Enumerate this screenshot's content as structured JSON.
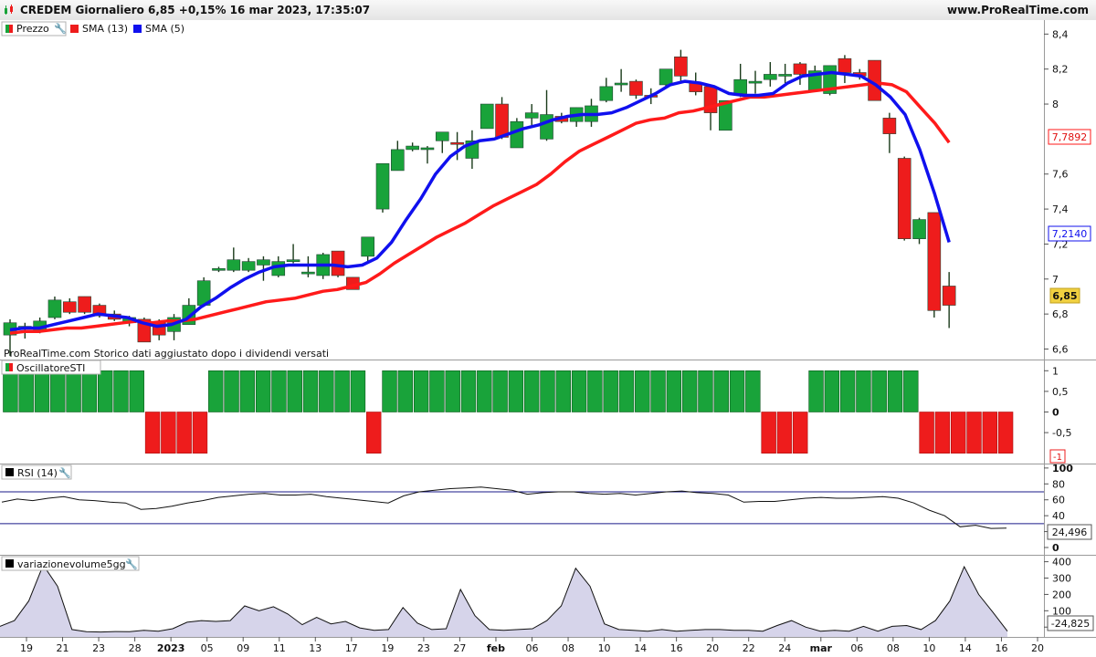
{
  "header": {
    "title": "CREDEM Giornaliero 6,85 +0,15% 16 mar 2023, 17:35:07",
    "site": "www.ProRealTime.com"
  },
  "note": "ProRealTime.com Storico dati aggiustato dopo i dividendi versati",
  "legend": {
    "price": "Prezzo",
    "sma13": "SMA (13)",
    "sma5": "SMA (5)",
    "sti": "OscillatoreSTI",
    "rsi": "RSI (14)",
    "vol": "variazionevolume5gg"
  },
  "colors": {
    "up": "#19a33a",
    "down": "#ee1c1c",
    "sma13": "#ff1a1a",
    "sma5": "#1010ee",
    "rsi_level": "#1a1a8a",
    "vol_fill": "#d6d4ea"
  },
  "badges": {
    "sma13": "7,7892",
    "sma5": "7,2140",
    "price": "6,85",
    "sti": "-1",
    "rsi": "24,496",
    "vol": "-24,825"
  },
  "chart_data": [
    {
      "type": "candlestick",
      "title": "CREDEM Giornaliero",
      "x_labels": [
        "19",
        "21",
        "23",
        "28",
        "2023",
        "05",
        "09",
        "11",
        "13",
        "17",
        "19",
        "23",
        "27",
        "feb",
        "06",
        "08",
        "10",
        "14",
        "16",
        "20",
        "22",
        "24",
        "mar",
        "06",
        "08",
        "10",
        "14",
        "16",
        "20"
      ],
      "y_ticks": [
        "6,6",
        "6,8",
        "7",
        "7,2",
        "7,4",
        "7,6",
        "8",
        "8,2",
        "8,4"
      ],
      "ylim": [
        6.54,
        8.48
      ],
      "candles": [
        {
          "o": 6.68,
          "h": 6.77,
          "l": 6.56,
          "c": 6.75
        },
        {
          "o": 6.72,
          "h": 6.75,
          "l": 6.66,
          "c": 6.73
        },
        {
          "o": 6.7,
          "h": 6.78,
          "l": 6.69,
          "c": 6.76
        },
        {
          "o": 6.78,
          "h": 6.9,
          "l": 6.77,
          "c": 6.88
        },
        {
          "o": 6.87,
          "h": 6.89,
          "l": 6.8,
          "c": 6.81
        },
        {
          "o": 6.9,
          "h": 6.9,
          "l": 6.8,
          "c": 6.81
        },
        {
          "o": 6.85,
          "h": 6.86,
          "l": 6.78,
          "c": 6.79
        },
        {
          "o": 6.8,
          "h": 6.82,
          "l": 6.76,
          "c": 6.77
        },
        {
          "o": 6.75,
          "h": 6.79,
          "l": 6.73,
          "c": 6.78
        },
        {
          "o": 6.77,
          "h": 6.78,
          "l": 6.64,
          "c": 6.64
        },
        {
          "o": 6.75,
          "h": 6.77,
          "l": 6.65,
          "c": 6.68
        },
        {
          "o": 6.7,
          "h": 6.8,
          "l": 6.65,
          "c": 6.78
        },
        {
          "o": 6.74,
          "h": 6.89,
          "l": 6.74,
          "c": 6.85
        },
        {
          "o": 6.85,
          "h": 7.01,
          "l": 6.85,
          "c": 6.99
        },
        {
          "o": 7.05,
          "h": 7.07,
          "l": 7.04,
          "c": 7.06
        },
        {
          "o": 7.05,
          "h": 7.18,
          "l": 7.04,
          "c": 7.11
        },
        {
          "o": 7.05,
          "h": 7.12,
          "l": 7.04,
          "c": 7.1
        },
        {
          "o": 7.08,
          "h": 7.13,
          "l": 6.99,
          "c": 7.11
        },
        {
          "o": 7.02,
          "h": 7.13,
          "l": 7.01,
          "c": 7.1
        },
        {
          "o": 7.1,
          "h": 7.2,
          "l": 7.09,
          "c": 7.11
        },
        {
          "o": 7.03,
          "h": 7.13,
          "l": 7.01,
          "c": 7.04
        },
        {
          "o": 7.02,
          "h": 7.15,
          "l": 7.0,
          "c": 7.14
        },
        {
          "o": 7.16,
          "h": 7.16,
          "l": 7.01,
          "c": 7.02
        },
        {
          "o": 7.01,
          "h": 7.01,
          "l": 6.94,
          "c": 6.94
        },
        {
          "o": 7.13,
          "h": 7.24,
          "l": 7.1,
          "c": 7.24
        },
        {
          "o": 7.4,
          "h": 7.66,
          "l": 7.38,
          "c": 7.66
        },
        {
          "o": 7.62,
          "h": 7.79,
          "l": 7.62,
          "c": 7.74
        },
        {
          "o": 7.74,
          "h": 7.78,
          "l": 7.73,
          "c": 7.76
        },
        {
          "o": 7.74,
          "h": 7.76,
          "l": 7.66,
          "c": 7.75
        },
        {
          "o": 7.79,
          "h": 7.83,
          "l": 7.72,
          "c": 7.84
        },
        {
          "o": 7.78,
          "h": 7.84,
          "l": 7.68,
          "c": 7.77
        },
        {
          "o": 7.69,
          "h": 7.85,
          "l": 7.63,
          "c": 7.79
        },
        {
          "o": 7.86,
          "h": 7.99,
          "l": 7.86,
          "c": 8.0
        },
        {
          "o": 8.0,
          "h": 8.04,
          "l": 7.8,
          "c": 7.81
        },
        {
          "o": 7.75,
          "h": 7.92,
          "l": 7.75,
          "c": 7.9
        },
        {
          "o": 7.92,
          "h": 8.0,
          "l": 7.87,
          "c": 7.95
        },
        {
          "o": 7.8,
          "h": 8.08,
          "l": 7.79,
          "c": 7.94
        },
        {
          "o": 7.93,
          "h": 7.95,
          "l": 7.89,
          "c": 7.9
        },
        {
          "o": 7.9,
          "h": 7.98,
          "l": 7.87,
          "c": 7.98
        },
        {
          "o": 7.9,
          "h": 8.03,
          "l": 7.87,
          "c": 7.99
        },
        {
          "o": 8.02,
          "h": 8.15,
          "l": 8.01,
          "c": 8.1
        },
        {
          "o": 8.12,
          "h": 8.2,
          "l": 8.07,
          "c": 8.12
        },
        {
          "o": 8.13,
          "h": 8.14,
          "l": 8.03,
          "c": 8.05
        },
        {
          "o": 8.05,
          "h": 8.09,
          "l": 8.0,
          "c": 8.04
        },
        {
          "o": 8.11,
          "h": 8.2,
          "l": 8.09,
          "c": 8.2
        },
        {
          "o": 8.27,
          "h": 8.31,
          "l": 8.12,
          "c": 8.16
        },
        {
          "o": 8.12,
          "h": 8.18,
          "l": 8.05,
          "c": 8.07
        },
        {
          "o": 8.1,
          "h": 8.11,
          "l": 7.85,
          "c": 7.95
        },
        {
          "o": 7.85,
          "h": 8.02,
          "l": 7.85,
          "c": 8.02
        },
        {
          "o": 8.06,
          "h": 8.23,
          "l": 8.04,
          "c": 8.14
        },
        {
          "o": 8.13,
          "h": 8.19,
          "l": 8.06,
          "c": 8.13
        },
        {
          "o": 8.14,
          "h": 8.24,
          "l": 8.1,
          "c": 8.17
        },
        {
          "o": 8.16,
          "h": 8.23,
          "l": 8.12,
          "c": 8.17
        },
        {
          "o": 8.23,
          "h": 8.24,
          "l": 8.11,
          "c": 8.17
        },
        {
          "o": 8.08,
          "h": 8.22,
          "l": 8.07,
          "c": 8.19
        },
        {
          "o": 8.06,
          "h": 8.22,
          "l": 8.05,
          "c": 8.22
        },
        {
          "o": 8.26,
          "h": 8.28,
          "l": 8.12,
          "c": 8.18
        },
        {
          "o": 8.18,
          "h": 8.2,
          "l": 8.14,
          "c": 8.16
        },
        {
          "o": 8.25,
          "h": 8.25,
          "l": 8.02,
          "c": 8.02
        },
        {
          "o": 7.92,
          "h": 7.95,
          "l": 7.72,
          "c": 7.83
        },
        {
          "o": 7.69,
          "h": 7.7,
          "l": 7.22,
          "c": 7.23
        },
        {
          "o": 7.23,
          "h": 7.35,
          "l": 7.2,
          "c": 7.34
        },
        {
          "o": 7.38,
          "h": 7.38,
          "l": 6.78,
          "c": 6.82
        },
        {
          "o": 6.96,
          "h": 7.04,
          "l": 6.72,
          "c": 6.85
        }
      ],
      "series": [
        {
          "name": "SMA (13)",
          "values": [
            6.69,
            6.7,
            6.7,
            6.71,
            6.72,
            6.72,
            6.73,
            6.74,
            6.75,
            6.76,
            6.75,
            6.76,
            6.76,
            6.77,
            6.79,
            6.81,
            6.83,
            6.85,
            6.87,
            6.88,
            6.89,
            6.91,
            6.93,
            6.94,
            6.96,
            6.98,
            7.03,
            7.09,
            7.14,
            7.19,
            7.24,
            7.28,
            7.32,
            7.37,
            7.42,
            7.46,
            7.5,
            7.54,
            7.6,
            7.67,
            7.73,
            7.77,
            7.81,
            7.85,
            7.89,
            7.91,
            7.92,
            7.95,
            7.96,
            7.98,
            8.0,
            8.02,
            8.04,
            8.04,
            8.05,
            8.06,
            8.07,
            8.08,
            8.09,
            8.1,
            8.11,
            8.12,
            8.11,
            8.07,
            7.98,
            7.89,
            7.78
          ]
        },
        {
          "name": "SMA (5)",
          "values": [
            6.71,
            6.72,
            6.72,
            6.74,
            6.76,
            6.78,
            6.8,
            6.79,
            6.78,
            6.75,
            6.73,
            6.74,
            6.77,
            6.84,
            6.89,
            6.95,
            7.0,
            7.04,
            7.07,
            7.08,
            7.08,
            7.08,
            7.08,
            7.07,
            7.08,
            7.12,
            7.21,
            7.34,
            7.46,
            7.6,
            7.7,
            7.76,
            7.79,
            7.8,
            7.83,
            7.86,
            7.88,
            7.91,
            7.93,
            7.94,
            7.94,
            7.95,
            7.98,
            8.02,
            8.06,
            8.11,
            8.13,
            8.12,
            8.1,
            8.06,
            8.05,
            8.05,
            8.06,
            8.12,
            8.16,
            8.17,
            8.18,
            8.17,
            8.16,
            8.11,
            8.04,
            7.94,
            7.74,
            7.49,
            7.21
          ]
        }
      ]
    },
    {
      "type": "bar",
      "title": "OscillatoreSTI",
      "y_ticks": [
        "1",
        "0,5",
        "0",
        "-0,5"
      ],
      "ylim": [
        -1.25,
        1.25
      ],
      "values": [
        1,
        1,
        1,
        1,
        1,
        1,
        1,
        1,
        1,
        -1,
        -1,
        -1,
        -1,
        1,
        1,
        1,
        1,
        1,
        1,
        1,
        1,
        1,
        1,
        -1,
        1,
        1,
        1,
        1,
        1,
        1,
        1,
        1,
        1,
        1,
        1,
        1,
        1,
        1,
        1,
        1,
        1,
        1,
        1,
        1,
        1,
        1,
        1,
        1,
        -1,
        -1,
        -1,
        1,
        1,
        1,
        1,
        1,
        1,
        1,
        -1,
        -1,
        -1,
        -1,
        -1,
        -1
      ]
    },
    {
      "type": "line",
      "title": "RSI (14)",
      "y_ticks": [
        "100",
        "80",
        "60",
        "40",
        "20",
        "0"
      ],
      "ylim": [
        0,
        100
      ],
      "levels": [
        70,
        30
      ],
      "values": [
        57,
        61,
        59,
        62,
        64,
        60,
        59,
        57,
        56,
        48,
        49,
        52,
        56,
        59,
        63,
        65,
        67,
        68,
        66,
        66,
        67,
        64,
        62,
        60,
        58,
        56,
        65,
        70,
        72,
        74,
        75,
        76,
        74,
        72,
        67,
        69,
        70,
        70,
        68,
        67,
        68,
        66,
        68,
        70,
        71,
        69,
        68,
        66,
        57,
        58,
        58,
        60,
        62,
        63,
        62,
        62,
        63,
        64,
        62,
        56,
        47,
        40,
        26,
        28,
        24,
        24.5
      ]
    },
    {
      "type": "area",
      "title": "variazionevolume5gg",
      "y_ticks": [
        "400",
        "300",
        "200",
        "100",
        "0"
      ],
      "ylim": [
        -60,
        420
      ],
      "values": [
        5,
        40,
        160,
        380,
        250,
        -15,
        -28,
        -30,
        -27,
        -28,
        -20,
        -25,
        -10,
        30,
        40,
        35,
        40,
        130,
        100,
        125,
        80,
        15,
        60,
        20,
        35,
        -5,
        -20,
        -15,
        120,
        25,
        -15,
        -10,
        230,
        70,
        -15,
        -20,
        -15,
        -10,
        40,
        130,
        360,
        250,
        20,
        -15,
        -20,
        -25,
        -15,
        -25,
        -20,
        -15,
        -15,
        -20,
        -20,
        -25,
        10,
        40,
        0,
        -25,
        -20,
        -25,
        5,
        -25,
        5,
        10,
        -15,
        40,
        160,
        370,
        200,
        90,
        -24.8
      ]
    }
  ]
}
